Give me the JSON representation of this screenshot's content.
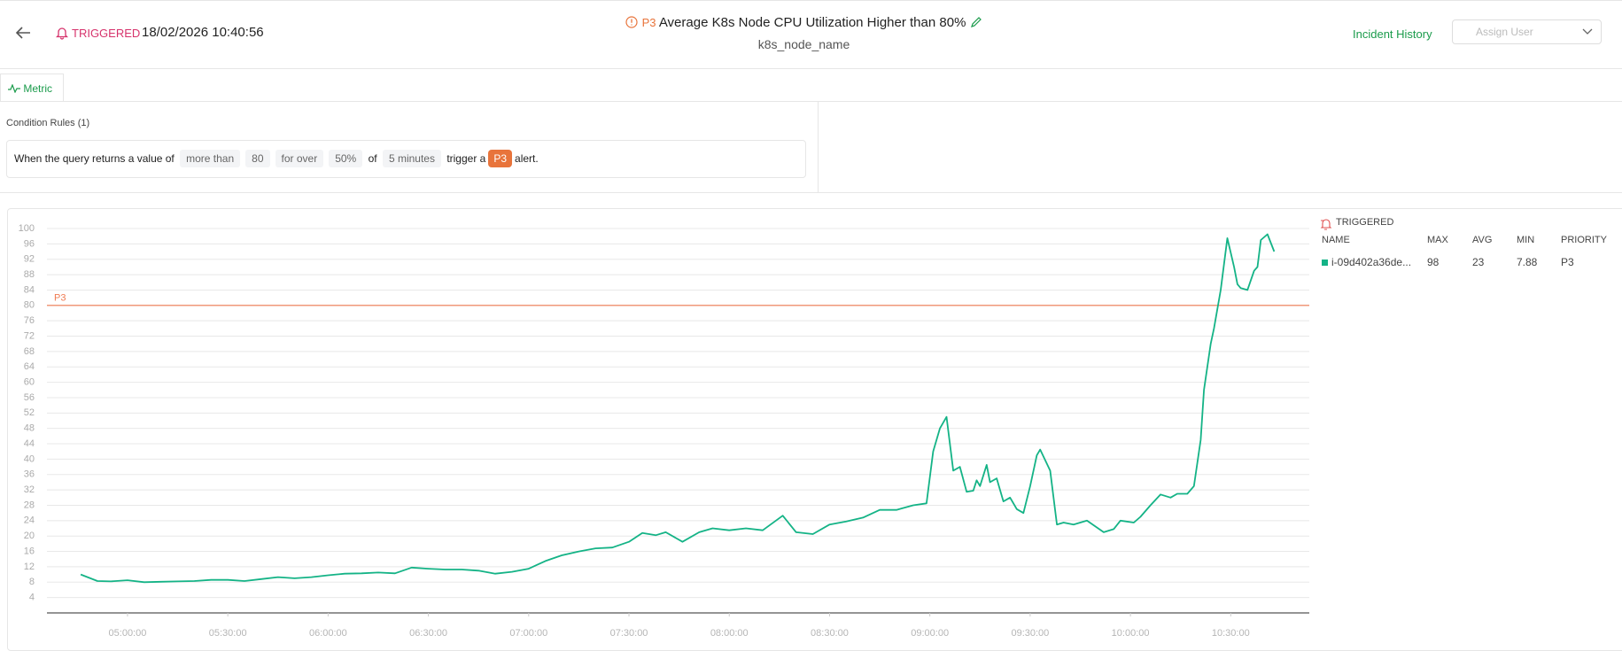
{
  "header": {
    "status": "TRIGGERED",
    "timestamp": "18/02/2026 10:40:56",
    "priority": "P3",
    "title": "Average K8s Node CPU Utilization Higher than 80%",
    "subtitle": "k8s_node_name",
    "incident_history": "Incident History",
    "assign_user": "Assign User"
  },
  "tabs": [
    "Metric"
  ],
  "condition": {
    "heading": "Condition Rules (1)",
    "parts": [
      "When the query returns a value of",
      "more than",
      80,
      "for over",
      "50%",
      "of",
      "5 minutes",
      "trigger a",
      "P3",
      "alert."
    ]
  },
  "legend": {
    "status": "TRIGGERED",
    "columns": [
      "NAME",
      "MAX",
      "AVG",
      "MIN",
      "PRIORITY"
    ],
    "max": 98,
    "avg": 23,
    "min": 7.88,
    "priority": "P3"
  },
  "chart_data": {
    "type": "line",
    "x": [
      "04:46:00",
      "04:51:00",
      "04:55:00",
      "05:00:00",
      "05:05:00",
      "05:10:00",
      "05:15:00",
      "05:20:00",
      "05:25:00",
      "05:30:00",
      "05:35:00",
      "05:40:00",
      "05:45:00",
      "05:50:00",
      "05:55:00",
      "06:00:00",
      "06:05:00",
      "06:10:00",
      "06:15:00",
      "06:20:00",
      "06:25:00",
      "06:30:00",
      "06:35:00",
      "06:40:00",
      "06:45:00",
      "06:50:00",
      "06:55:00",
      "07:00:00",
      "07:05:00",
      "07:10:00",
      "07:15:00",
      "07:20:00",
      "07:25:00",
      "07:30:00",
      "07:34:00",
      "07:38:00",
      "07:41:00",
      "07:46:00",
      "07:51:00",
      "07:55:00",
      "08:00:00",
      "08:05:00",
      "08:10:00",
      "08:16:00",
      "08:20:00",
      "08:25:00",
      "08:30:00",
      "08:35:00",
      "08:40:00",
      "08:45:00",
      "08:50:00",
      "08:55:00",
      "08:59:00",
      "09:01:00",
      "09:03:00",
      "09:05:00",
      "09:07:00",
      "09:09:00",
      "09:11:00",
      "09:13:00",
      "09:14:00",
      "09:15:00",
      "09:17:00",
      "09:18:00",
      "09:20:00",
      "09:22:00",
      "09:24:00",
      "09:26:00",
      "09:28:00",
      "09:30:00",
      "09:32:00",
      "09:33:00",
      "09:36:00",
      "09:38:00",
      "09:40:00",
      "09:43:00",
      "09:47:00",
      "09:52:00",
      "09:55:00",
      "09:57:00",
      "10:01:00",
      "10:03:00",
      "10:06:00",
      "10:09:00",
      "10:12:00",
      "10:14:00",
      "10:17:00",
      "10:19:00",
      "10:21:00",
      "10:22:00",
      "10:24:00",
      "10:25:00",
      "10:27:00",
      "10:29:00",
      "10:31:00",
      "10:32:00",
      "10:33:00",
      "10:35:00",
      "10:37:00",
      "10:38:00",
      "10:39:00",
      "10:41:00",
      "10:43:00"
    ],
    "series": [
      {
        "name": "i-09d402a36de...",
        "color": "#14b386",
        "values": [
          10,
          8.3,
          8.2,
          8.5,
          8,
          8.1,
          8.2,
          8.3,
          8.6,
          8.6,
          8.3,
          8.8,
          9.3,
          9,
          9.3,
          9.8,
          10.2,
          10.3,
          10.5,
          10.3,
          11.8,
          11.5,
          11.3,
          11.3,
          11,
          10.2,
          10.7,
          11.5,
          13.5,
          15,
          16,
          16.8,
          17,
          18.5,
          20.8,
          20.2,
          21,
          18.5,
          21,
          22,
          21.5,
          22,
          21.5,
          25.3,
          21,
          20.5,
          23,
          23.8,
          24.8,
          26.8,
          26.8,
          28,
          28.5,
          42,
          48,
          51,
          37,
          38,
          31.5,
          31.8,
          34.5,
          33,
          38.5,
          34,
          35,
          29,
          30,
          27,
          26,
          33,
          41,
          42.5,
          37,
          23,
          23.5,
          23,
          24,
          21,
          21.8,
          24,
          23.5,
          25,
          28,
          30.8,
          30,
          31,
          31,
          33,
          45,
          58,
          70,
          74,
          84,
          97.5,
          90,
          85.5,
          84.5,
          84,
          89,
          90,
          97,
          98.5,
          94
        ]
      }
    ],
    "xlim": [
      "04:35:54",
      "10:53:30"
    ],
    "xticks": [
      "05:00:00",
      "05:30:00",
      "06:00:00",
      "06:30:00",
      "07:00:00",
      "07:30:00",
      "08:00:00",
      "08:30:00",
      "09:00:00",
      "09:30:00",
      "10:00:00",
      "10:30:00"
    ],
    "ylim": [
      0,
      100
    ],
    "yticks": [
      4,
      8,
      12,
      16,
      20,
      24,
      28,
      32,
      36,
      40,
      44,
      48,
      52,
      56,
      60,
      64,
      68,
      72,
      76,
      80,
      84,
      88,
      92,
      96,
      100
    ],
    "grid": true,
    "threshold": {
      "value": 80,
      "label": "P3",
      "color": "#f07b52"
    }
  }
}
